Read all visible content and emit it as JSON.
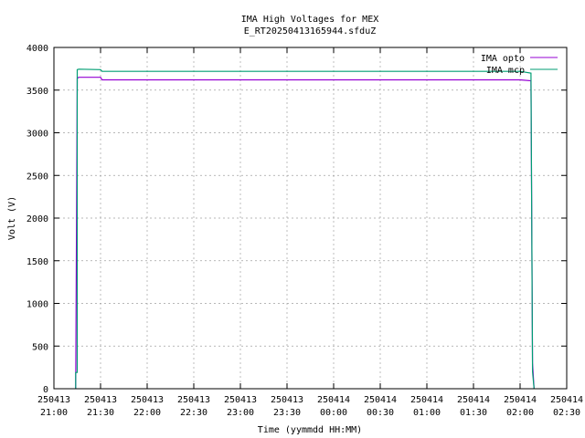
{
  "chart_data": {
    "type": "line",
    "title": "IMA High Voltages for MEX",
    "subtitle": "E_RT20250413165944.sfduZ",
    "xlabel": "Time (yymmdd HH:MM)",
    "ylabel": "Volt (V)",
    "xlim_minutes": [
      0,
      330
    ],
    "ylim": [
      0,
      4000
    ],
    "grid": true,
    "legend_position": "top-right",
    "y_ticks": [
      "0",
      "500",
      "1000",
      "1500",
      "2000",
      "2500",
      "3000",
      "3500",
      "4000"
    ],
    "x_ticks": [
      {
        "date": "250413",
        "time": "21:00"
      },
      {
        "date": "250413",
        "time": "21:30"
      },
      {
        "date": "250413",
        "time": "22:00"
      },
      {
        "date": "250413",
        "time": "22:30"
      },
      {
        "date": "250413",
        "time": "23:00"
      },
      {
        "date": "250413",
        "time": "23:30"
      },
      {
        "date": "250414",
        "time": "00:00"
      },
      {
        "date": "250414",
        "time": "00:30"
      },
      {
        "date": "250414",
        "time": "01:00"
      },
      {
        "date": "250414",
        "time": "01:30"
      },
      {
        "date": "250414",
        "time": "02:00"
      },
      {
        "date": "250414",
        "time": "02:30"
      }
    ],
    "series": [
      {
        "name": "IMA opto",
        "color": "#9400d3",
        "x": [
          "21:14",
          "21:15",
          "21:16",
          "21:30",
          "21:31",
          "22:00",
          "23:00",
          "00:00",
          "01:00",
          "02:00",
          "02:07",
          "02:08",
          "02:09"
        ],
        "y": [
          0,
          3640,
          3650,
          3650,
          3620,
          3620,
          3620,
          3620,
          3620,
          3620,
          3610,
          300,
          0
        ]
      },
      {
        "name": "IMA mcp",
        "color": "#009e73",
        "x": [
          "21:14",
          "21:14",
          "21:15",
          "21:15",
          "21:16",
          "21:30",
          "21:31",
          "22:00",
          "23:00",
          "00:00",
          "01:00",
          "02:00",
          "02:07",
          "02:08",
          "02:09"
        ],
        "y": [
          0,
          190,
          190,
          3740,
          3745,
          3740,
          3720,
          3720,
          3720,
          3720,
          3720,
          3720,
          3700,
          200,
          0
        ]
      }
    ]
  }
}
